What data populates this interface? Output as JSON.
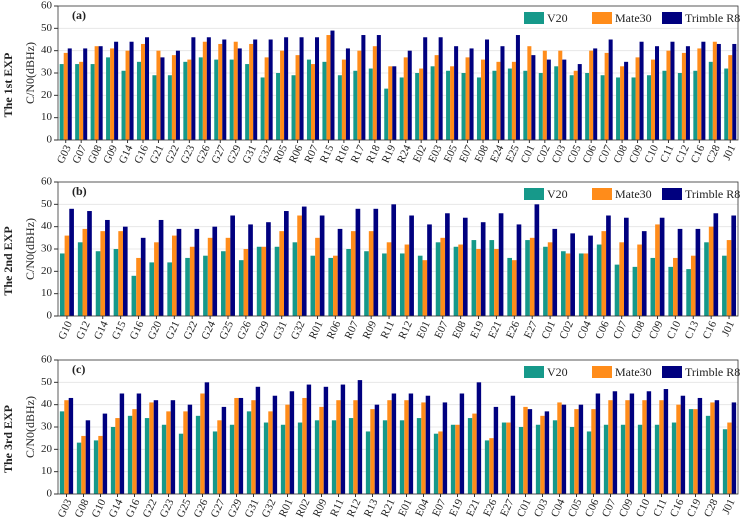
{
  "chart_data": [
    {
      "type": "bar",
      "panel_label": "(a)",
      "row_label": "The 1st EXP",
      "y_label": "C/N0(dBHz)",
      "categories": [
        "G03",
        "G07",
        "G08",
        "G09",
        "G14",
        "G16",
        "G21",
        "G22",
        "G23",
        "G26",
        "G27",
        "G29",
        "G31",
        "G32",
        "R05",
        "R06",
        "R07",
        "R15",
        "R16",
        "R17",
        "R18",
        "R19",
        "R24",
        "E02",
        "E03",
        "E05",
        "E07",
        "E08",
        "E24",
        "E25",
        "C01",
        "C02",
        "C03",
        "C05",
        "C06",
        "C07",
        "C08",
        "C09",
        "C10",
        "C11",
        "C12",
        "C16",
        "C28",
        "J01"
      ],
      "series": [
        {
          "name": "V20",
          "color": "#16998a",
          "values": [
            34,
            34,
            34,
            37,
            31,
            35,
            29,
            29,
            35,
            37,
            36,
            36,
            34,
            28,
            30,
            29,
            36,
            35,
            29,
            31,
            32,
            23,
            28,
            30,
            33,
            31,
            30,
            28,
            31,
            32,
            31,
            30,
            33,
            29,
            30,
            29,
            28,
            28,
            29,
            31,
            30,
            31,
            35,
            32
          ]
        },
        {
          "name": "Mate30",
          "color": "#ff8c1a",
          "values": [
            39,
            35,
            42,
            41,
            40,
            43,
            40,
            38,
            36,
            44,
            43,
            44,
            43,
            37,
            40,
            38,
            34,
            47,
            36,
            40,
            42,
            33,
            37,
            32,
            38,
            33,
            37,
            36,
            35,
            35,
            42,
            40,
            40,
            31,
            40,
            39,
            33,
            37,
            36,
            40,
            39,
            41,
            44,
            38
          ]
        },
        {
          "name": "Trimble R8",
          "color": "#00007f",
          "values": [
            41,
            41,
            42,
            44,
            44,
            46,
            37,
            40,
            46,
            46,
            45,
            41,
            45,
            45,
            46,
            46,
            46,
            49,
            41,
            47,
            47,
            33,
            40,
            46,
            46,
            42,
            41,
            45,
            42,
            47,
            38,
            36,
            36,
            34,
            41,
            45,
            35,
            44,
            42,
            44,
            42,
            44,
            43,
            43
          ]
        }
      ],
      "ylim": [
        0,
        60
      ],
      "yticks": [
        0,
        10,
        20,
        30,
        40,
        50,
        60
      ],
      "grid": true,
      "legend": "top-right"
    },
    {
      "type": "bar",
      "panel_label": "(b)",
      "row_label": "The 2nd EXP",
      "y_label": "C/N0(dBHz)",
      "categories": [
        "G10",
        "G12",
        "G14",
        "G15",
        "G16",
        "G20",
        "G21",
        "G22",
        "G24",
        "G25",
        "G26",
        "G29",
        "G31",
        "G32",
        "R01",
        "R06",
        "R07",
        "R09",
        "R11",
        "R12",
        "E01",
        "E07",
        "E08",
        "E19",
        "E21",
        "E26",
        "E27",
        "C01",
        "C02",
        "C04",
        "C06",
        "C07",
        "C08",
        "C09",
        "C10",
        "C13",
        "C16",
        "J01"
      ],
      "series": [
        {
          "name": "V20",
          "color": "#16998a",
          "values": [
            28,
            33,
            29,
            30,
            18,
            24,
            24,
            26,
            27,
            29,
            25,
            31,
            31,
            33,
            27,
            26,
            30,
            29,
            28,
            28,
            27,
            33,
            31,
            34,
            34,
            26,
            34,
            31,
            29,
            28,
            32,
            23,
            22,
            26,
            22,
            21,
            33,
            27
          ]
        },
        {
          "name": "Mate30",
          "color": "#ff8c1a",
          "values": [
            36,
            39,
            38,
            38,
            26,
            33,
            36,
            31,
            35,
            35,
            30,
            31,
            38,
            45,
            35,
            27,
            38,
            38,
            33,
            32,
            25,
            35,
            32,
            30,
            30,
            25,
            35,
            33,
            28,
            28,
            38,
            33,
            32,
            41,
            26,
            27,
            40,
            34
          ]
        },
        {
          "name": "Trimble R8",
          "color": "#00007f",
          "values": [
            48,
            47,
            43,
            40,
            35,
            43,
            39,
            39,
            40,
            45,
            41,
            42,
            47,
            49,
            45,
            39,
            48,
            48,
            50,
            45,
            41,
            46,
            44,
            42,
            46,
            41,
            50,
            39,
            37,
            36,
            45,
            44,
            38,
            44,
            39,
            39,
            46,
            45
          ]
        }
      ],
      "ylim": [
        0,
        60
      ],
      "yticks": [
        0,
        10,
        20,
        30,
        40,
        50,
        60
      ],
      "grid": true,
      "legend": "top-right"
    },
    {
      "type": "bar",
      "panel_label": "(c)",
      "row_label": "The 3rd EXP",
      "y_label": "C/N0(dBHz)",
      "categories": [
        "G03",
        "G08",
        "G10",
        "G14",
        "G16",
        "G22",
        "G23",
        "G25",
        "G26",
        "G27",
        "G29",
        "G31",
        "G32",
        "R01",
        "R02",
        "R09",
        "R11",
        "R12",
        "R13",
        "R21",
        "E01",
        "E04",
        "E07",
        "E19",
        "E21",
        "E26",
        "E27",
        "C01",
        "C03",
        "C04",
        "C05",
        "C06",
        "C07",
        "C09",
        "C10",
        "C11",
        "C16",
        "C19",
        "C28",
        "J01"
      ],
      "series": [
        {
          "name": "V20",
          "color": "#16998a",
          "values": [
            37,
            23,
            24,
            30,
            35,
            34,
            31,
            27,
            35,
            28,
            31,
            37,
            32,
            31,
            32,
            33,
            33,
            34,
            28,
            33,
            33,
            34,
            27,
            31,
            34,
            24,
            32,
            30,
            31,
            33,
            30,
            28,
            31,
            31,
            31,
            31,
            32,
            38,
            35,
            29
          ]
        },
        {
          "name": "Mate30",
          "color": "#ff8c1a",
          "values": [
            42,
            26,
            26,
            34,
            38,
            41,
            37,
            37,
            45,
            33,
            43,
            42,
            37,
            40,
            43,
            39,
            42,
            42,
            38,
            42,
            42,
            41,
            28,
            31,
            36,
            25,
            32,
            39,
            35,
            41,
            38,
            38,
            42,
            42,
            42,
            42,
            40,
            38,
            41,
            32
          ]
        },
        {
          "name": "Trimble R8",
          "color": "#00007f",
          "values": [
            43,
            33,
            36,
            45,
            45,
            42,
            42,
            40,
            50,
            39,
            43,
            48,
            44,
            46,
            49,
            48,
            49,
            51,
            40,
            45,
            45,
            44,
            41,
            45,
            50,
            39,
            44,
            38,
            37,
            40,
            40,
            45,
            46,
            45,
            46,
            47,
            44,
            43,
            42,
            41
          ]
        }
      ],
      "ylim": [
        0,
        60
      ],
      "yticks": [
        0,
        10,
        20,
        30,
        40,
        50,
        60
      ],
      "grid": true,
      "legend": "top-right"
    }
  ]
}
